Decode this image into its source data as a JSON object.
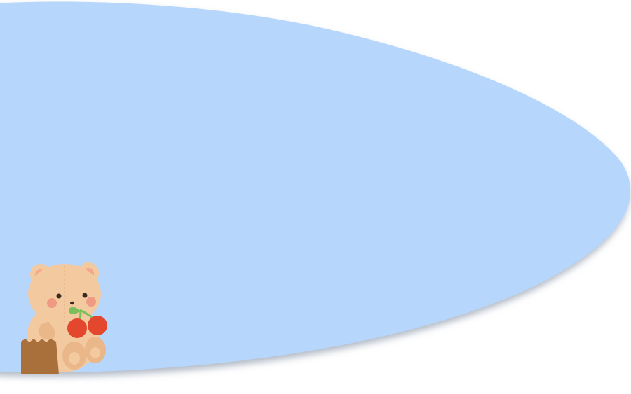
{
  "colors": {
    "background": "#ffffff",
    "blob_fill": "#b6d6fc",
    "blob_shadow": "#7d8ea6",
    "bear_fur": "#f3c9a0",
    "bear_fur_dark": "#e9b78a",
    "bear_ear_inner": "#f2a88a",
    "bear_cheek": "#ef9a83",
    "bear_eye": "#3b2a20",
    "cherry": "#e3472e",
    "cherry_leaf": "#7bbf5b",
    "bag": "#a9703b"
  },
  "decorations": {
    "main_shape": "light-blue-oval-blob",
    "sticker": "teddy-bear-holding-cherries-icon",
    "bag": "paper-bag-icon"
  }
}
